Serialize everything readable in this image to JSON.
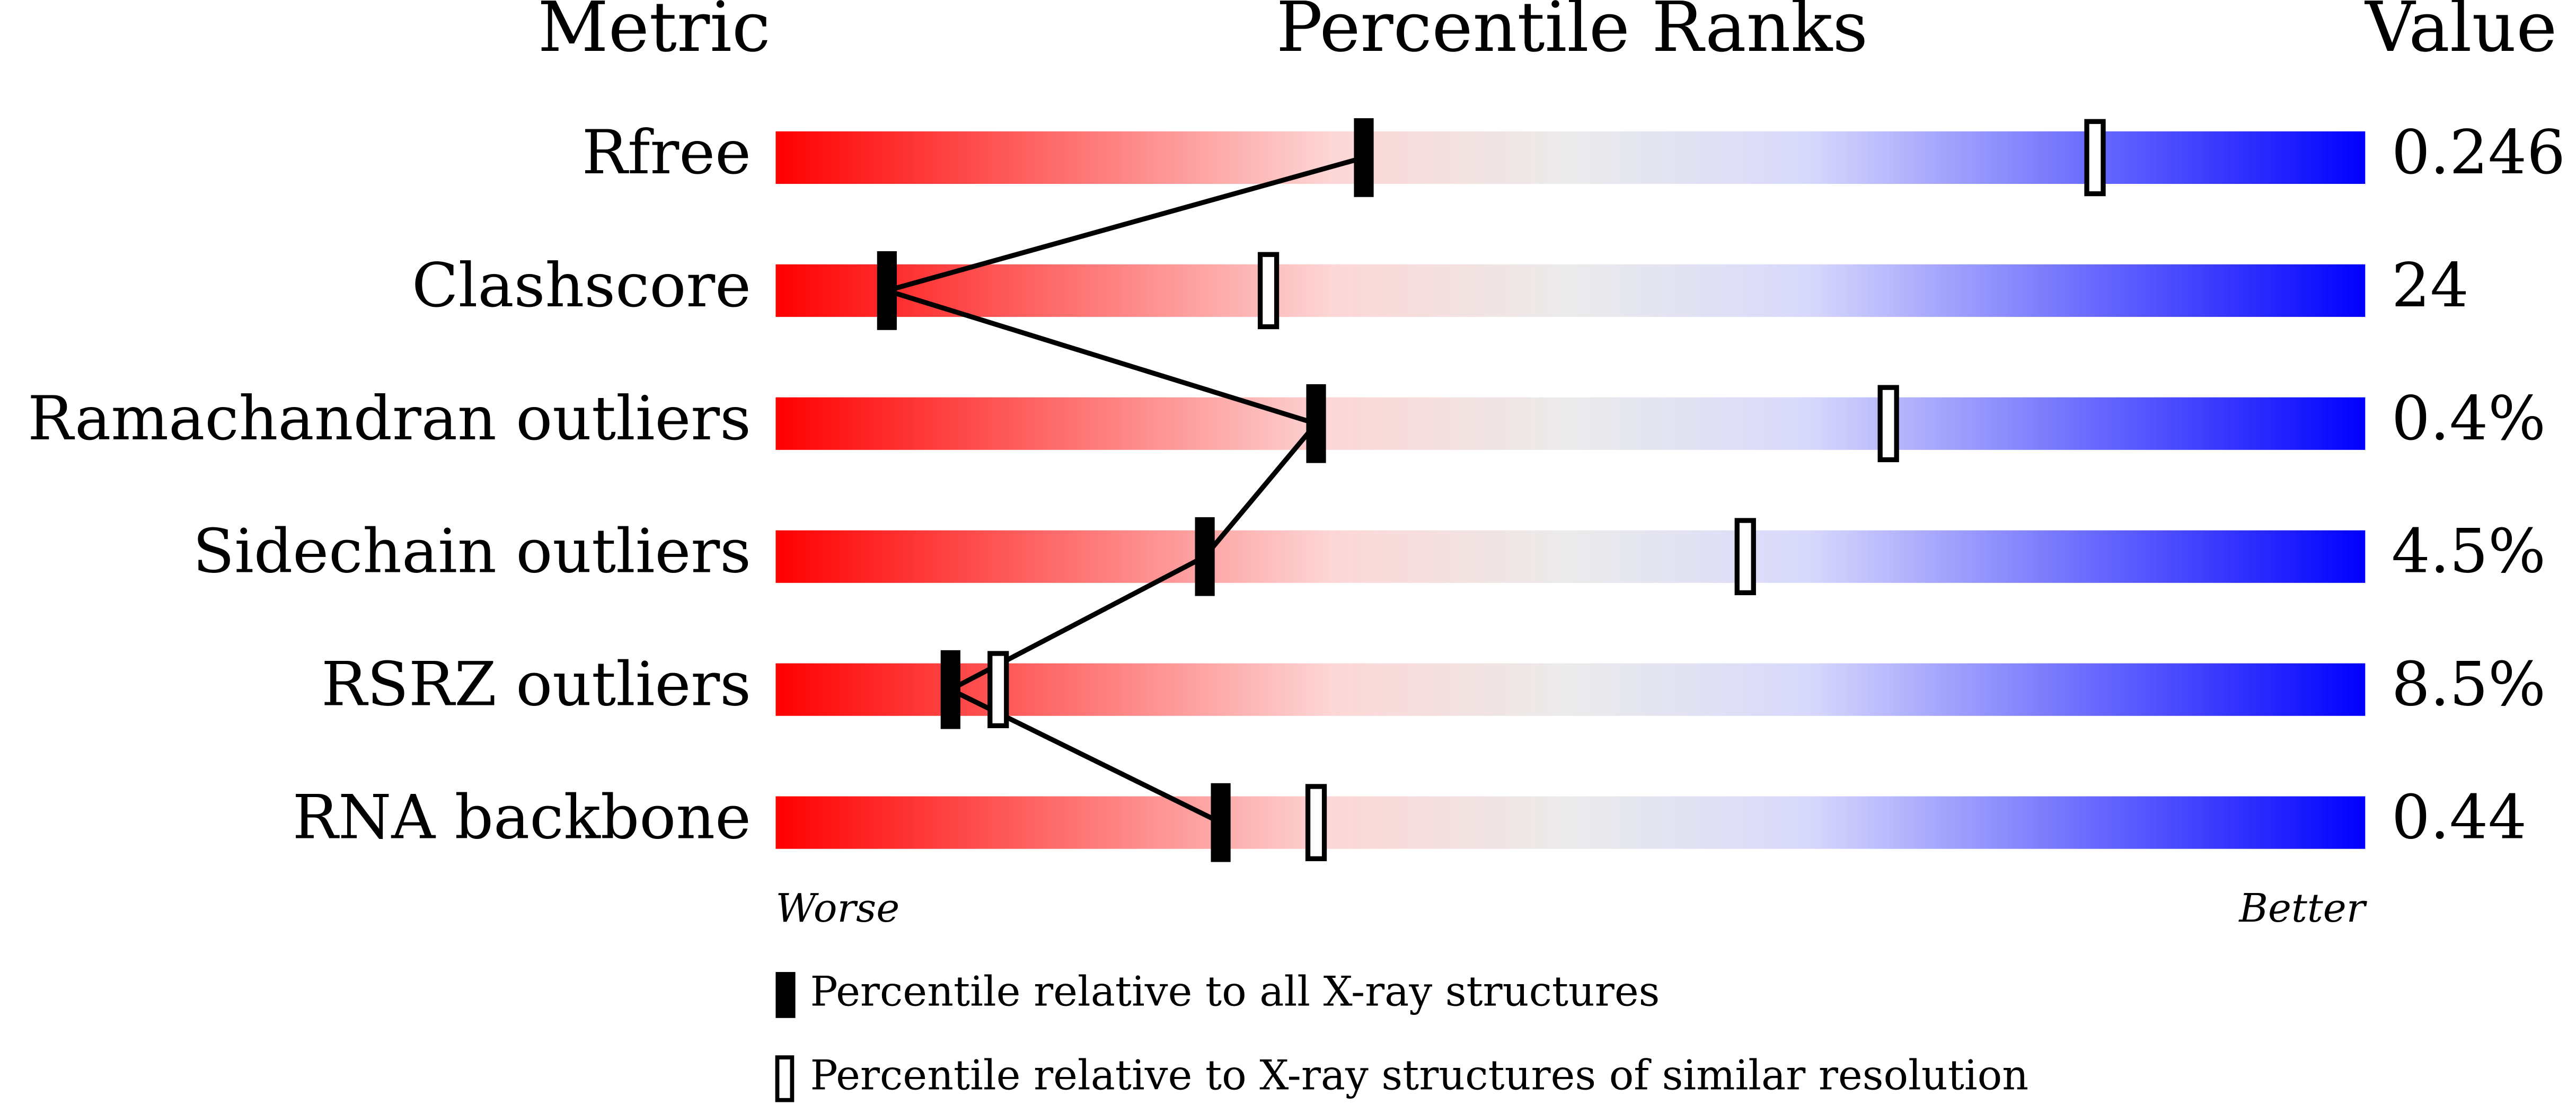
{
  "chart_data": {
    "type": "percentile",
    "headers": [
      "Metric",
      "Percentile Ranks",
      "Value"
    ],
    "categories": [
      "Rfree",
      "Clashscore",
      "Ramachandran outliers",
      "Sidechain outliers",
      "RSRZ outliers",
      "RNA backbone"
    ],
    "metric_values": [
      "0.246",
      "24",
      "0.4%",
      "4.5%",
      "8.5%",
      "0.44"
    ],
    "xlim": [
      0,
      100
    ],
    "x_labels": [
      "Worse",
      "Better"
    ],
    "series": [
      {
        "name": "Percentile relative to all X-ray structures",
        "color": "#000000",
        "values": [
          37,
          7,
          34,
          27,
          11,
          28
        ]
      },
      {
        "name": "Percentile relative to X-ray structures of similar resolution",
        "color": "#ffffff",
        "values": [
          83,
          31,
          70,
          61,
          14,
          34
        ]
      }
    ]
  }
}
